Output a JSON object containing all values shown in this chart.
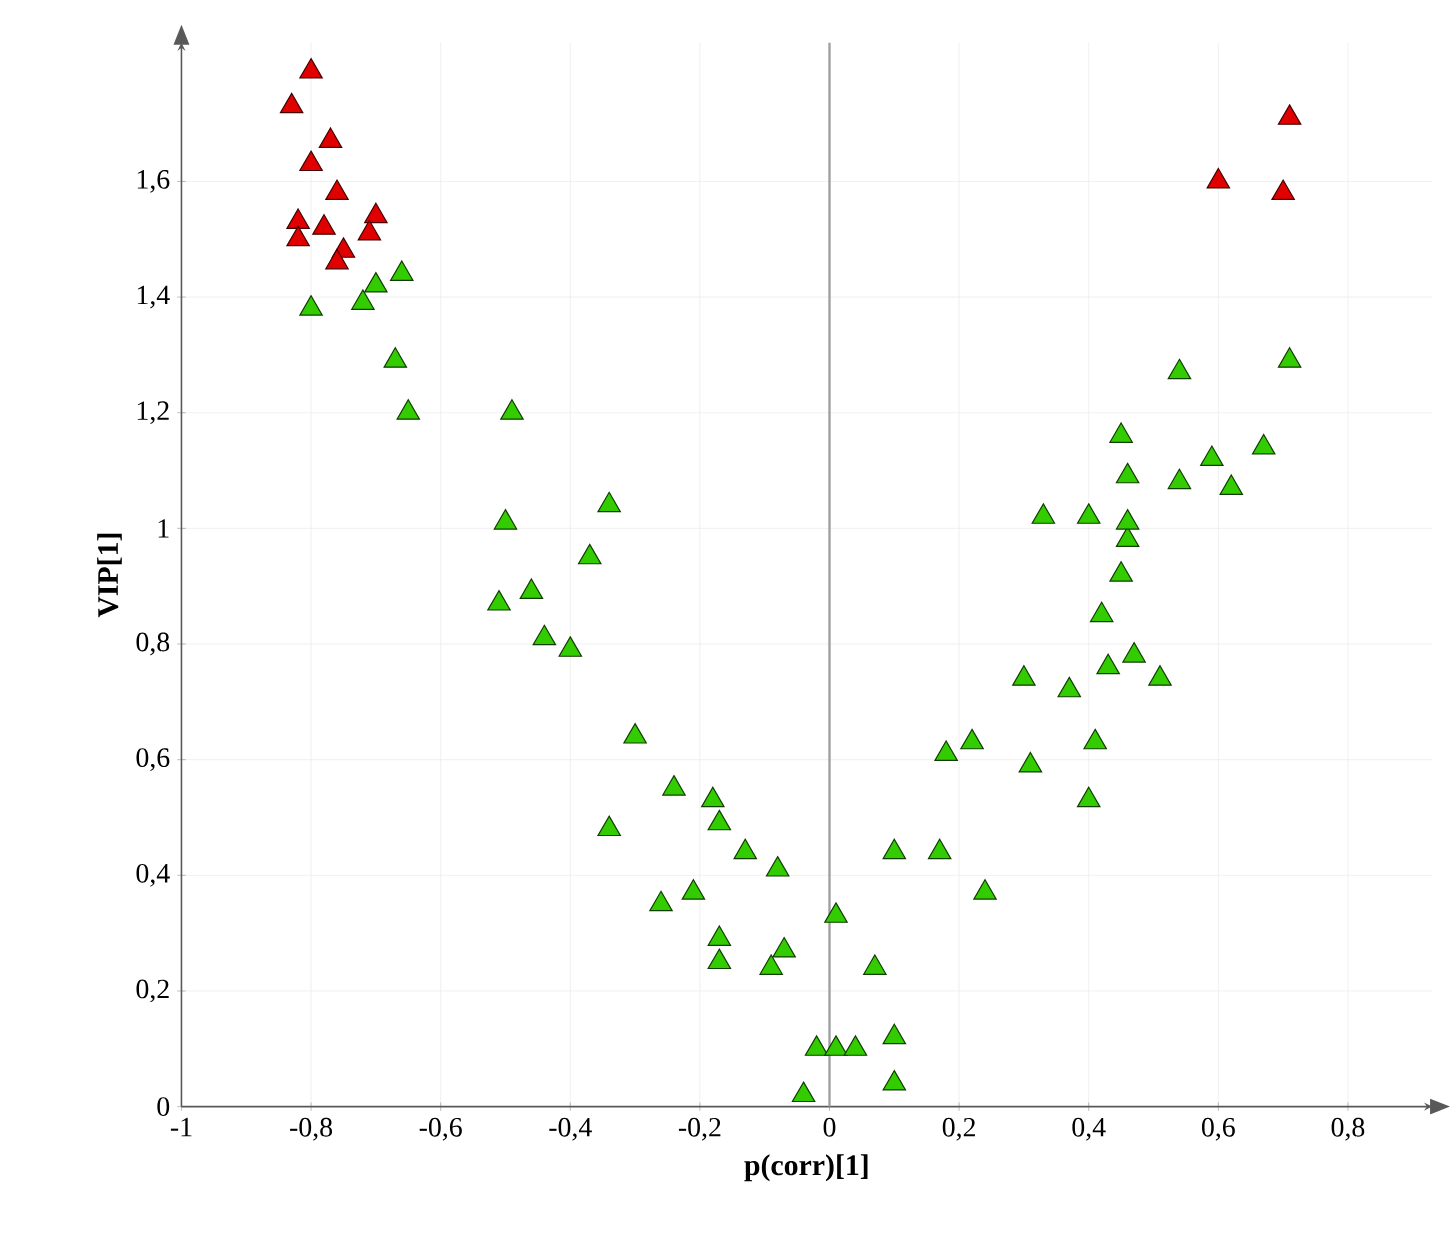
{
  "chart_data": {
    "type": "scatter",
    "xlabel": "p(corr)[1]",
    "ylabel": "VIP[1]",
    "xlim": [
      -1,
      0.93
    ],
    "ylim": [
      0,
      1.84
    ],
    "xticks": [
      {
        "value": -1,
        "label": "-1"
      },
      {
        "value": -0.8,
        "label": "-0,8"
      },
      {
        "value": -0.6,
        "label": "-0,6"
      },
      {
        "value": -0.4,
        "label": "-0,4"
      },
      {
        "value": -0.2,
        "label": "-0,2"
      },
      {
        "value": 0,
        "label": "0"
      },
      {
        "value": 0.2,
        "label": "0,2"
      },
      {
        "value": 0.4,
        "label": "0,4"
      },
      {
        "value": 0.6,
        "label": "0,6"
      },
      {
        "value": 0.8,
        "label": "0,8"
      }
    ],
    "yticks": [
      {
        "value": 0,
        "label": "0"
      },
      {
        "value": 0.2,
        "label": "0,2"
      },
      {
        "value": 0.4,
        "label": "0,4"
      },
      {
        "value": 0.6,
        "label": "0,6"
      },
      {
        "value": 0.8,
        "label": "0,8"
      },
      {
        "value": 1,
        "label": "1"
      },
      {
        "value": 1.2,
        "label": "1,2"
      },
      {
        "value": 1.4,
        "label": "1,4"
      },
      {
        "value": 1.6,
        "label": "1,6"
      }
    ],
    "grid": true,
    "marker": "triangle",
    "ref_lines": [
      {
        "axis": "x",
        "value": 0,
        "color": "#a0a0a0"
      }
    ],
    "series": [
      {
        "color": "#33cc00",
        "x": [
          -0.8,
          -0.72,
          -0.7,
          -0.66,
          -0.67,
          -0.65,
          -0.49,
          -0.5,
          -0.34,
          -0.37,
          -0.51,
          -0.46,
          -0.44,
          -0.4,
          -0.3,
          -0.34,
          -0.24,
          -0.18,
          -0.17,
          -0.13,
          -0.08,
          -0.26,
          -0.21,
          -0.17,
          -0.17,
          -0.07,
          -0.09,
          0.01,
          -0.02,
          0.01,
          0.04,
          -0.04,
          0.1,
          0.1,
          0.07,
          0.1,
          0.17,
          0.24,
          0.18,
          0.22,
          0.31,
          0.41,
          0.4,
          0.3,
          0.37,
          0.43,
          0.47,
          0.51,
          0.42,
          0.45,
          0.46,
          0.46,
          0.4,
          0.33,
          0.45,
          0.54,
          0.71,
          0.59,
          0.67,
          0.46,
          0.54,
          0.62
        ],
        "values": [
          1.38,
          1.39,
          1.42,
          1.44,
          1.29,
          1.2,
          1.2,
          1.01,
          1.04,
          0.95,
          0.87,
          0.89,
          0.81,
          0.79,
          0.64,
          0.48,
          0.55,
          0.53,
          0.49,
          0.44,
          0.41,
          0.35,
          0.37,
          0.29,
          0.25,
          0.27,
          0.24,
          0.33,
          0.1,
          0.1,
          0.1,
          0.02,
          0.04,
          0.12,
          0.24,
          0.44,
          0.44,
          0.37,
          0.61,
          0.63,
          0.59,
          0.63,
          0.53,
          0.74,
          0.72,
          0.76,
          0.78,
          0.74,
          0.85,
          0.92,
          0.98,
          1.01,
          1.02,
          1.02,
          1.16,
          1.27,
          1.29,
          1.12,
          1.14,
          1.09,
          1.08,
          1.07
        ]
      },
      {
        "color": "#e00000",
        "x": [
          -0.8,
          -0.83,
          -0.77,
          -0.8,
          -0.76,
          -0.7,
          -0.82,
          -0.78,
          -0.82,
          -0.75,
          -0.71,
          -0.76,
          0.71,
          0.6,
          0.7
        ],
        "values": [
          1.79,
          1.73,
          1.67,
          1.63,
          1.58,
          1.54,
          1.53,
          1.52,
          1.5,
          1.48,
          1.51,
          1.46,
          1.71,
          1.6,
          1.58
        ]
      }
    ]
  }
}
